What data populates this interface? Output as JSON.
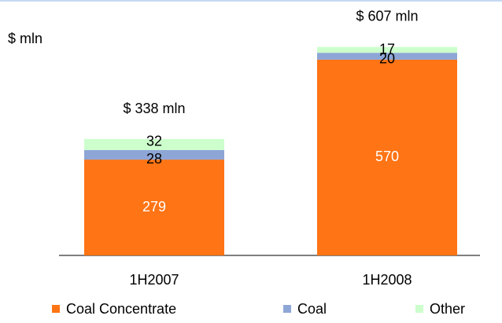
{
  "chart_data": {
    "type": "stacked-bar",
    "y_label": "$ mln",
    "categories": [
      "1H2007",
      "1H2008"
    ],
    "series": [
      {
        "name": "Coal Concentrate",
        "color": "#ff7415",
        "values": [
          279,
          570
        ]
      },
      {
        "name": "Coal",
        "color": "#8ea6d6",
        "values": [
          28,
          20
        ]
      },
      {
        "name": "Other",
        "color": "#ccffcc",
        "values": [
          32,
          17
        ]
      }
    ],
    "totals": {
      "values": [
        338,
        607
      ],
      "value_labels": [
        "$ 338  mln",
        "$ 607  mln"
      ]
    },
    "legend": "bottom"
  }
}
